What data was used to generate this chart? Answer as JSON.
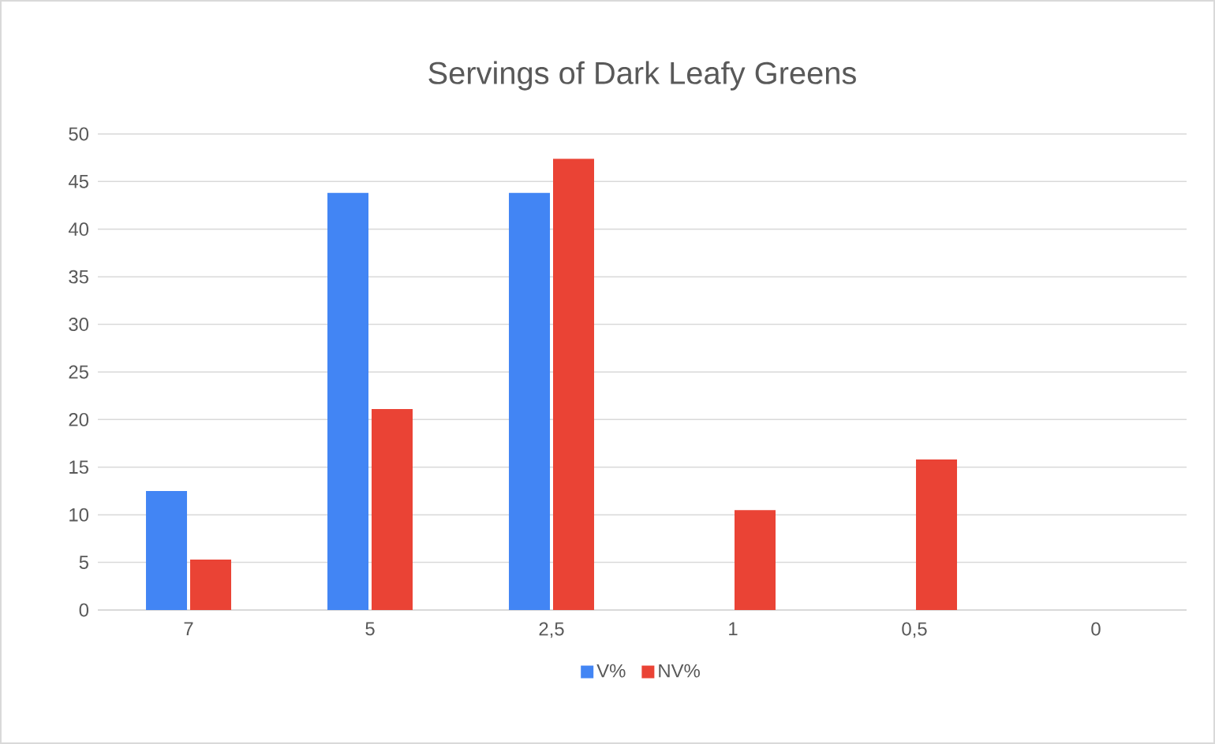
{
  "chart_data": {
    "type": "bar",
    "title": "Servings of Dark Leafy Greens",
    "categories": [
      "7",
      "5",
      "2,5",
      "1",
      "0,5",
      "0"
    ],
    "series": [
      {
        "name": "V%",
        "color": "#4285f4",
        "values": [
          12.5,
          43.8,
          43.8,
          0,
          0,
          0
        ]
      },
      {
        "name": "NV%",
        "color": "#ea4335",
        "values": [
          5.3,
          21.1,
          47.4,
          10.5,
          15.8,
          0
        ]
      }
    ],
    "ylim": [
      0,
      50
    ],
    "yticks": [
      0,
      5,
      10,
      15,
      20,
      25,
      30,
      35,
      40,
      45,
      50
    ],
    "grid": "y",
    "legend": "bottom"
  }
}
